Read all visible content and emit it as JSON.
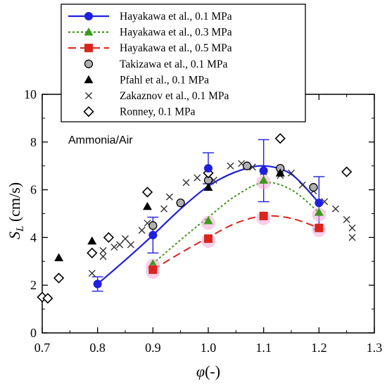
{
  "chart_data": {
    "type": "scatter",
    "xlabel": "φ(-)",
    "ylabel": "S_L (cm/s)",
    "xlim": [
      0.7,
      1.3
    ],
    "ylim": [
      0,
      10
    ],
    "x_ticks": [
      "0.7",
      "0.8",
      "0.9",
      "1.0",
      "1.1",
      "1.2",
      "1.3"
    ],
    "y_ticks": [
      "0",
      "2",
      "4",
      "6",
      "8",
      "10"
    ],
    "annotation": "Ammonia/Air",
    "legend_position": "top-right",
    "series": [
      {
        "name": "Hayakawa et al., 0.1 MPa",
        "marker": "circle",
        "color": "#1f1fe0",
        "line": "solid",
        "points": [
          {
            "x": 0.8,
            "y": 2.05,
            "err": 0.3
          },
          {
            "x": 0.9,
            "y": 4.1,
            "err": 0.75
          },
          {
            "x": 1.0,
            "y": 6.9,
            "err": 0.65
          },
          {
            "x": 1.1,
            "y": 6.8,
            "err": 1.3
          },
          {
            "x": 1.2,
            "y": 5.45,
            "err": 1.1
          }
        ],
        "fit": [
          [
            0.8,
            2.05
          ],
          [
            0.85,
            3.05
          ],
          [
            0.9,
            4.1
          ],
          [
            0.95,
            5.2
          ],
          [
            1.0,
            6.15
          ],
          [
            1.05,
            6.75
          ],
          [
            1.1,
            7.0
          ],
          [
            1.15,
            6.65
          ],
          [
            1.2,
            5.45
          ]
        ]
      },
      {
        "name": "Hayakawa et al., 0.3 MPa",
        "marker": "triangle",
        "color": "#3a9a1a",
        "line": "dotted",
        "points": [
          {
            "x": 0.9,
            "y": 2.9
          },
          {
            "x": 1.0,
            "y": 4.7
          },
          {
            "x": 1.1,
            "y": 6.4
          },
          {
            "x": 1.2,
            "y": 5.05
          }
        ],
        "fit": [
          [
            0.9,
            2.9
          ],
          [
            0.95,
            3.9
          ],
          [
            1.0,
            4.85
          ],
          [
            1.05,
            5.75
          ],
          [
            1.1,
            6.3
          ],
          [
            1.15,
            6.0
          ],
          [
            1.2,
            5.05
          ]
        ]
      },
      {
        "name": "Hayakawa et al., 0.5 MPa",
        "marker": "square",
        "color": "#d9261c",
        "line": "dashed",
        "points": [
          {
            "x": 0.9,
            "y": 2.65
          },
          {
            "x": 1.0,
            "y": 3.95
          },
          {
            "x": 1.1,
            "y": 4.9
          },
          {
            "x": 1.2,
            "y": 4.4
          }
        ],
        "fit": [
          [
            0.9,
            2.65
          ],
          [
            0.95,
            3.35
          ],
          [
            1.0,
            4.0
          ],
          [
            1.05,
            4.6
          ],
          [
            1.1,
            4.9
          ],
          [
            1.15,
            4.8
          ],
          [
            1.2,
            4.4
          ]
        ]
      },
      {
        "name": "Takizawa et al., 0.1 MPa",
        "marker": "circle-gray",
        "color": "#aaaaaa",
        "points": [
          {
            "x": 0.9,
            "y": 4.5
          },
          {
            "x": 0.95,
            "y": 5.45
          },
          {
            "x": 1.0,
            "y": 6.4
          },
          {
            "x": 1.07,
            "y": 7.0
          },
          {
            "x": 1.13,
            "y": 6.9
          },
          {
            "x": 1.19,
            "y": 6.1
          }
        ]
      },
      {
        "name": "Pfahl et al., 0.1 MPa",
        "marker": "triangle-black",
        "color": "#000000",
        "points": [
          {
            "x": 0.73,
            "y": 3.15
          },
          {
            "x": 0.79,
            "y": 3.85
          },
          {
            "x": 0.89,
            "y": 5.3
          },
          {
            "x": 1.0,
            "y": 6.1
          },
          {
            "x": 1.13,
            "y": 6.7
          }
        ]
      },
      {
        "name": "Zakaznov et al., 0.1 MPa",
        "marker": "cross",
        "color": "#333333",
        "points": [
          {
            "x": 0.79,
            "y": 2.5
          },
          {
            "x": 0.81,
            "y": 3.2
          },
          {
            "x": 0.81,
            "y": 3.45
          },
          {
            "x": 0.83,
            "y": 3.6
          },
          {
            "x": 0.84,
            "y": 3.7
          },
          {
            "x": 0.85,
            "y": 3.95
          },
          {
            "x": 0.86,
            "y": 3.7
          },
          {
            "x": 0.88,
            "y": 4.3
          },
          {
            "x": 0.89,
            "y": 4.6
          },
          {
            "x": 0.92,
            "y": 5.2
          },
          {
            "x": 0.93,
            "y": 5.7
          },
          {
            "x": 0.96,
            "y": 6.3
          },
          {
            "x": 0.98,
            "y": 6.5
          },
          {
            "x": 1.0,
            "y": 6.6
          },
          {
            "x": 1.01,
            "y": 6.4
          },
          {
            "x": 1.04,
            "y": 7.0
          },
          {
            "x": 1.06,
            "y": 7.1
          },
          {
            "x": 1.08,
            "y": 6.95
          },
          {
            "x": 1.1,
            "y": 6.75
          },
          {
            "x": 1.13,
            "y": 6.6
          },
          {
            "x": 1.15,
            "y": 6.7
          },
          {
            "x": 1.17,
            "y": 6.2
          },
          {
            "x": 1.19,
            "y": 5.95
          },
          {
            "x": 1.21,
            "y": 5.5
          },
          {
            "x": 1.23,
            "y": 5.2
          },
          {
            "x": 1.25,
            "y": 4.75
          },
          {
            "x": 1.26,
            "y": 4.4
          },
          {
            "x": 1.26,
            "y": 4.0
          }
        ]
      },
      {
        "name": "Ronney, 0.1 MPa",
        "marker": "diamond",
        "color": "#000000",
        "points": [
          {
            "x": 0.7,
            "y": 1.5
          },
          {
            "x": 0.71,
            "y": 1.45
          },
          {
            "x": 0.73,
            "y": 2.3
          },
          {
            "x": 0.79,
            "y": 3.35
          },
          {
            "x": 0.82,
            "y": 4.0
          },
          {
            "x": 0.89,
            "y": 5.9
          },
          {
            "x": 1.0,
            "y": 6.7
          },
          {
            "x": 1.13,
            "y": 8.15
          },
          {
            "x": 1.25,
            "y": 6.75
          }
        ]
      }
    ]
  }
}
